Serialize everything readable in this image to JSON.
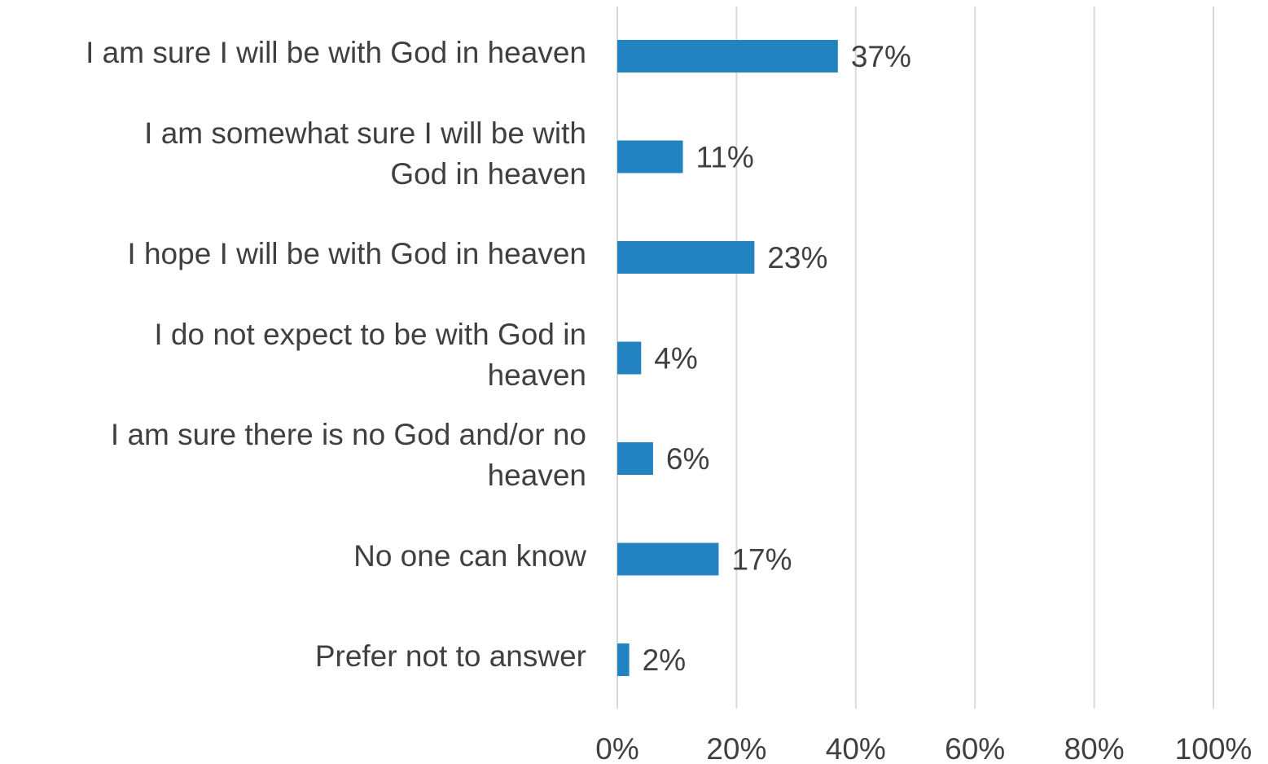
{
  "chart_data": {
    "type": "bar",
    "orientation": "horizontal",
    "categories": [
      "I am sure I will be with God in heaven",
      "I am somewhat sure I will be with God in heaven",
      "I hope I will be with God in heaven",
      "I do not expect to be with God in heaven",
      "I am sure there is no God and/or no heaven",
      "No one can know",
      "Prefer not to answer"
    ],
    "category_lines": [
      [
        "I am sure I will be with God in heaven"
      ],
      [
        "I am somewhat sure I will be with",
        "God in heaven"
      ],
      [
        "I hope I will be with God in heaven"
      ],
      [
        "I do not expect to be with God in",
        "heaven"
      ],
      [
        "I am sure there is no God and/or no",
        "heaven"
      ],
      [
        "No one can know"
      ],
      [
        "Prefer not to answer"
      ]
    ],
    "values": [
      37,
      11,
      23,
      4,
      6,
      17,
      2
    ],
    "data_labels": [
      "37%",
      "11%",
      "23%",
      "4%",
      "6%",
      "17%",
      "2%"
    ],
    "xlim": [
      0,
      100
    ],
    "x_ticks": [
      0,
      20,
      40,
      60,
      80,
      100
    ],
    "x_tick_labels": [
      "0%",
      "20%",
      "40%",
      "60%",
      "80%",
      "100%"
    ],
    "grid": "vertical",
    "legend": "none",
    "title": "",
    "xlabel": "",
    "ylabel": "",
    "colors": {
      "bar": "#2383C1",
      "grid": "#D9D9D9",
      "text": "#404040"
    }
  }
}
